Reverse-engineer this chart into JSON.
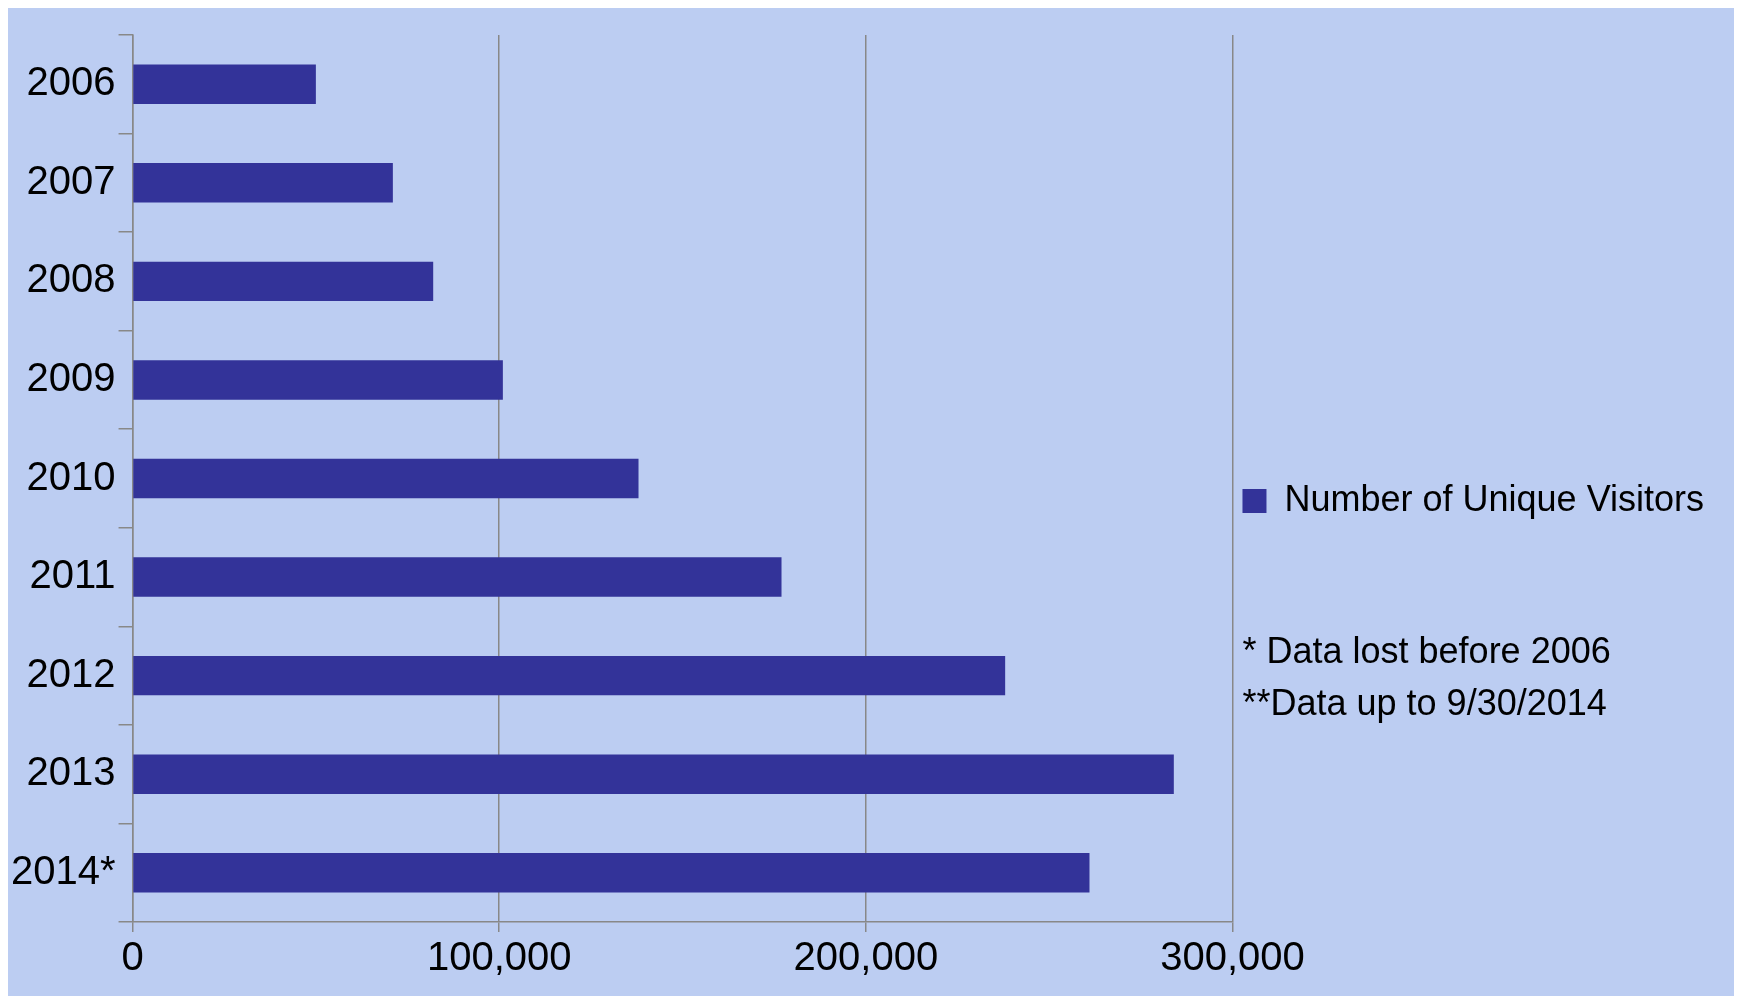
{
  "chart_data": {
    "type": "bar",
    "orientation": "horizontal",
    "categories": [
      "2006",
      "2007",
      "2008",
      "2009",
      "2010",
      "2011",
      "2012",
      "2013",
      "2014*"
    ],
    "series": [
      {
        "name": "Number of Unique Visitors",
        "color": "#333399",
        "values": [
          50000,
          71000,
          82000,
          101000,
          138000,
          177000,
          238000,
          284000,
          261000
        ]
      }
    ],
    "xlim": [
      0,
      300000
    ],
    "xticks": [
      {
        "value": 0,
        "label": "0"
      },
      {
        "value": 100000,
        "label": "100,000"
      },
      {
        "value": 200000,
        "label": "200,000"
      },
      {
        "value": 300000,
        "label": "300,000"
      }
    ],
    "grid": "x",
    "legend": "right",
    "annotations": [
      "* Data lost before 2006",
      "**Data up to 9/30/2014"
    ]
  }
}
